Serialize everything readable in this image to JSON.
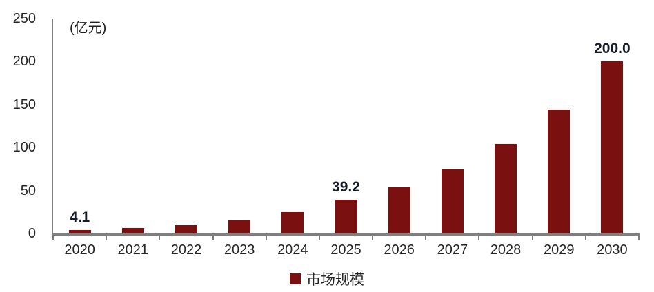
{
  "chart_data": {
    "type": "bar",
    "title": "",
    "unit_label": "(亿元)",
    "categories": [
      "2020",
      "2021",
      "2022",
      "2023",
      "2024",
      "2025",
      "2026",
      "2027",
      "2028",
      "2029",
      "2030"
    ],
    "series": [
      {
        "name": "市场规模",
        "values": [
          4.1,
          6.4,
          10.0,
          15.5,
          24.5,
          39.2,
          53.8,
          74.8,
          104.0,
          144.0,
          200.0
        ],
        "color": "#7a1010"
      }
    ],
    "value_labels": [
      "4.1",
      "",
      "",
      "",
      "",
      "39.2",
      "",
      "",
      "",
      "",
      "200.0"
    ],
    "xlabel": "",
    "ylabel": "",
    "ylim": [
      0,
      250
    ],
    "yticks": [
      0,
      50,
      100,
      150,
      200,
      250
    ],
    "grid": false,
    "legend_position": "bottom-center",
    "colors": {
      "bar": "#7a1010",
      "axis": "#7f7f7f",
      "tick_label": "#262626",
      "value_label": "#151b29",
      "unit_label": "#1f1f1f",
      "background": "#ffffff"
    }
  },
  "legend": {
    "items": [
      {
        "label": "市场规模",
        "color": "#7a1010"
      }
    ]
  }
}
